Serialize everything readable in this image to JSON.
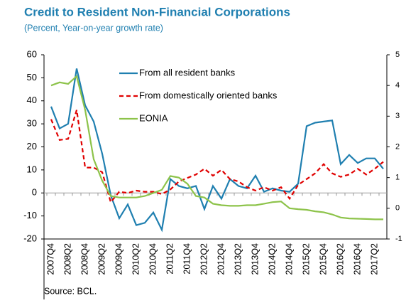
{
  "chart_data": {
    "type": "line",
    "title": "Credit to Resident Non-Financial Corporations",
    "subtitle": "(Percent, Year-on-year growth rate)",
    "source": "Source: BCL.",
    "categories": [
      "2007Q4",
      null,
      "2008Q2",
      null,
      "2008Q4",
      null,
      "2009Q2",
      null,
      "2009Q4",
      null,
      "2010Q2",
      null,
      "2010Q4",
      null,
      "2011Q2",
      null,
      "2011Q4",
      null,
      "2012Q2",
      null,
      "2012Q4",
      null,
      "2013Q2",
      null,
      "2013Q4",
      null,
      "2014Q2",
      null,
      "2014Q4",
      null,
      "2015Q2",
      null,
      "2015Q4",
      null,
      "2016Q2",
      null,
      "2016Q4",
      null,
      "2017Q2",
      null
    ],
    "series": [
      {
        "name": "From all resident banks",
        "color": "#1f7fb0",
        "dash": false,
        "values": [
          37.5,
          28,
          30,
          54,
          38,
          31,
          17,
          -1,
          -11,
          -5,
          -14,
          -13,
          -8.5,
          -16,
          6,
          3,
          2,
          3,
          -7,
          3,
          -2.5,
          6,
          3,
          2,
          7.5,
          0.5,
          2,
          1,
          0.5,
          4,
          29,
          30.5,
          31,
          31.5,
          12.5,
          16.5,
          13,
          15,
          15,
          10.5
        ]
      },
      {
        "name": "From domestically oriented banks",
        "color": "#e00000",
        "dash": true,
        "values": [
          32,
          23,
          23.5,
          36,
          11,
          11,
          9,
          -4,
          0.5,
          0,
          1,
          0.5,
          0.5,
          -0.5,
          1.5,
          5,
          6.5,
          8,
          10.5,
          7.5,
          10,
          6,
          5,
          2.5,
          1,
          2.5,
          1,
          2.5,
          -2.5,
          3.5,
          6,
          8.5,
          12.5,
          8.5,
          7,
          8,
          10.5,
          8,
          10.5,
          13.5
        ]
      },
      {
        "name": "EONIA",
        "color": "#8dc34a",
        "dash": false,
        "axis": "y2",
        "values": [
          4.0,
          4.1,
          4.05,
          4.3,
          3.2,
          1.6,
          0.9,
          0.4,
          0.35,
          0.35,
          0.35,
          0.4,
          0.5,
          0.6,
          1.05,
          1.0,
          0.8,
          0.4,
          0.35,
          0.15,
          0.1,
          0.08,
          0.08,
          0.1,
          0.1,
          0.15,
          0.2,
          0.22,
          0.0,
          -0.03,
          -0.05,
          -0.1,
          -0.13,
          -0.2,
          -0.3,
          -0.33,
          -0.34,
          -0.35,
          -0.36,
          -0.36
        ]
      }
    ],
    "ylim": [
      -20,
      60
    ],
    "yticks": [
      -20,
      -10,
      0,
      10,
      20,
      30,
      40,
      50,
      60
    ],
    "y2lim": [
      -1,
      5
    ],
    "y2ticks": [
      -1,
      0,
      1,
      2,
      3,
      4,
      5
    ]
  }
}
